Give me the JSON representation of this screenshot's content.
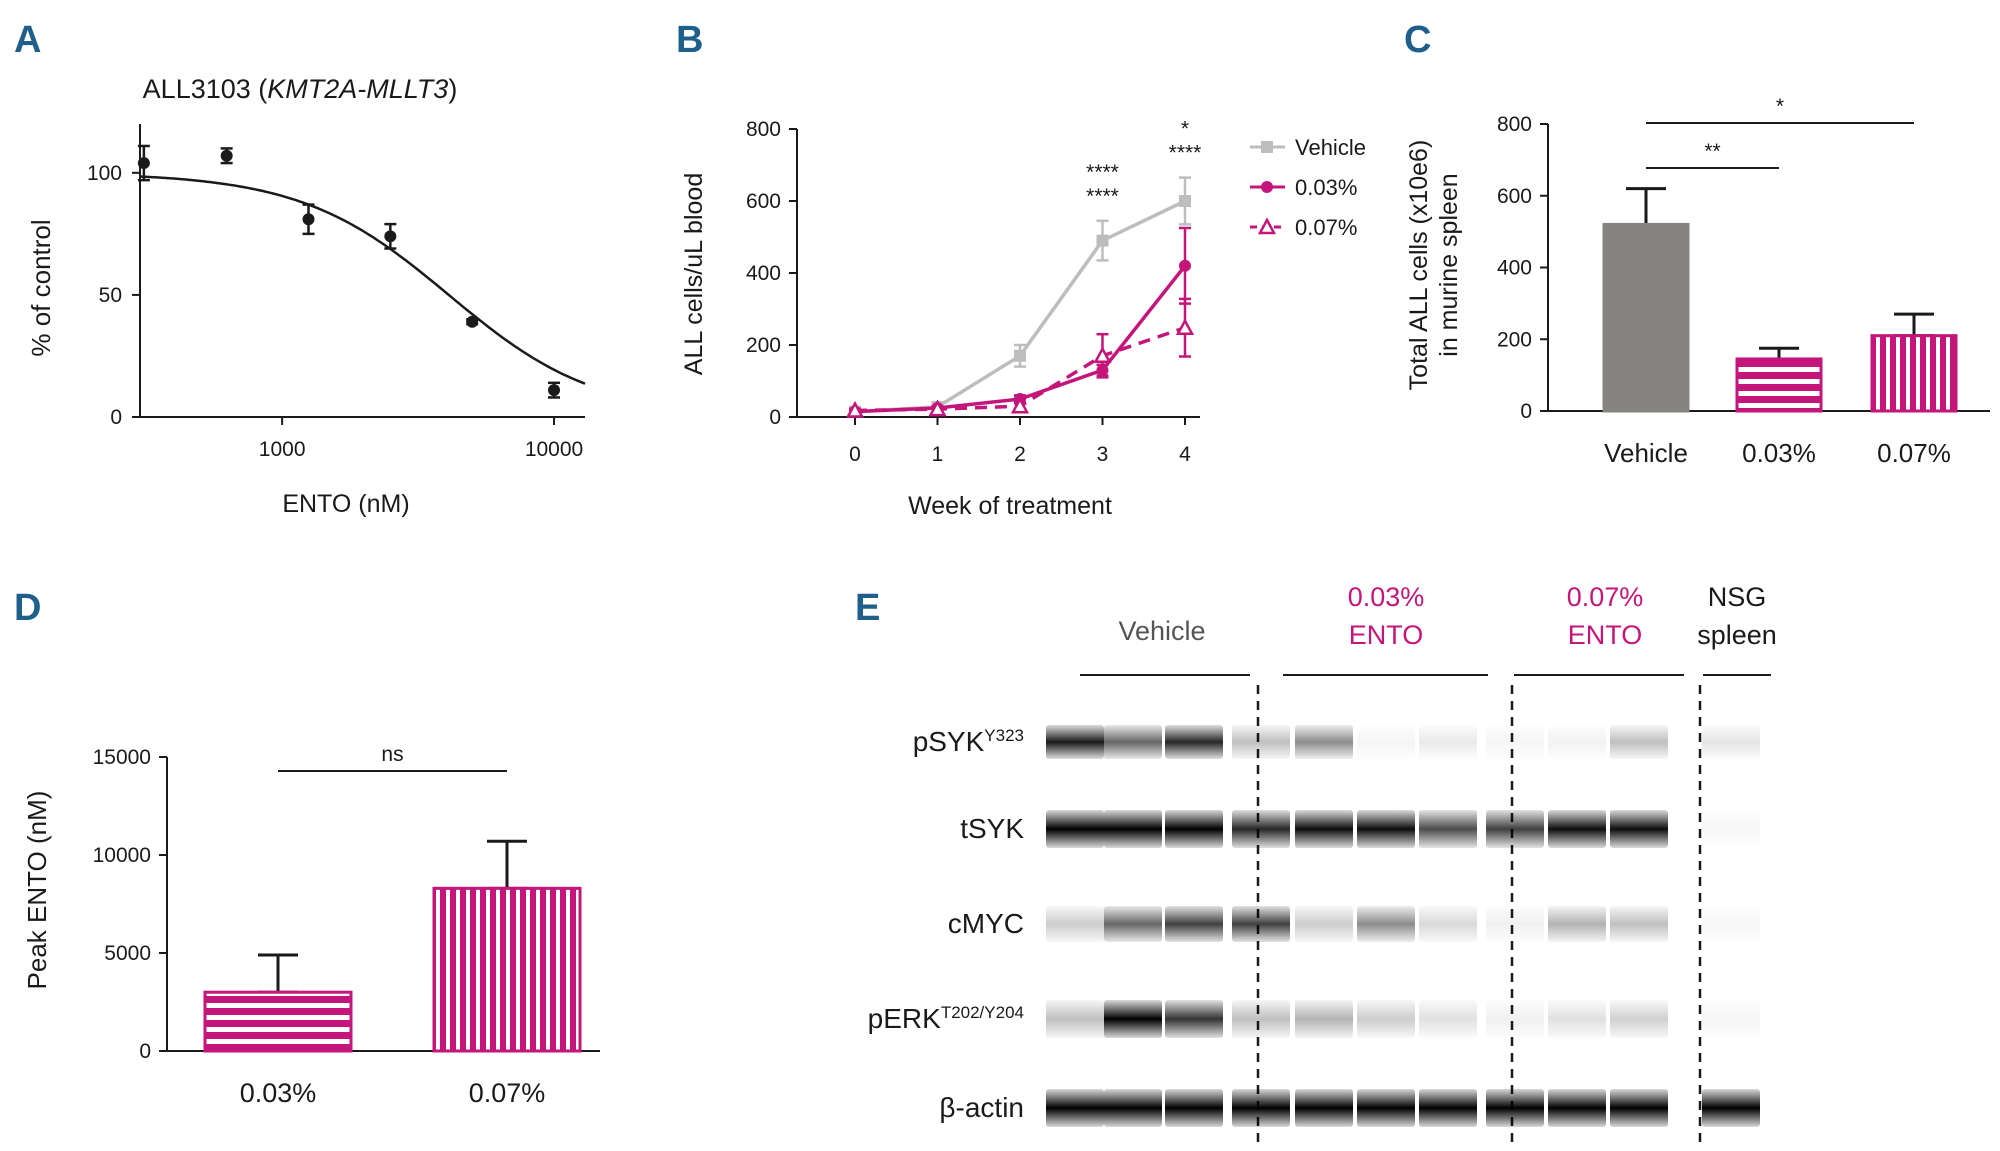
{
  "colors": {
    "black": "#1a1a1a",
    "grey": "#bdbdbd",
    "vehicle_bar": "#858480",
    "magenta": "#c4157a",
    "panel_letter": "#1f5f8b"
  },
  "panels": {
    "A": "A",
    "B": "B",
    "C": "C",
    "D": "D",
    "E": "E"
  },
  "chart_data": [
    {
      "panel": "A",
      "type": "scatter",
      "title_prefix": "ALL3103 (",
      "title_italic": "KMT2A-MLLT3",
      "title_suffix": ")",
      "xlabel": "ENTO (nM)",
      "ylabel": "% of control",
      "xscale": "log",
      "xlim": [
        300,
        13000
      ],
      "ylim": [
        0,
        120
      ],
      "xticks": [
        1000,
        10000
      ],
      "xtick_labels": [
        "1000",
        "10000"
      ],
      "yticks": [
        0,
        50,
        100
      ],
      "ytick_labels": [
        "0",
        "50",
        "100"
      ],
      "points": [
        {
          "x": 310,
          "y": 104,
          "err": 7
        },
        {
          "x": 625,
          "y": 107,
          "err": 3
        },
        {
          "x": 1250,
          "y": 81,
          "err": 6
        },
        {
          "x": 2500,
          "y": 74,
          "err": 5
        },
        {
          "x": 5000,
          "y": 39,
          "err": 1
        },
        {
          "x": 10000,
          "y": 11,
          "err": 3
        }
      ],
      "fit": {
        "top": 100,
        "bottom": 0,
        "ic50": 4100,
        "hill": 1.6
      }
    },
    {
      "panel": "B",
      "type": "line",
      "xlabel": "Week of treatment",
      "ylabel": "ALL cells/uL blood",
      "x": [
        0,
        1,
        2,
        3,
        4
      ],
      "xtick_labels": [
        "0",
        "1",
        "2",
        "3",
        "4"
      ],
      "ylim": [
        0,
        800
      ],
      "yticks": [
        0,
        200,
        400,
        600,
        800
      ],
      "ytick_labels": [
        "0",
        "200",
        "400",
        "600",
        "800"
      ],
      "series": [
        {
          "name": "Vehicle",
          "marker": "square",
          "dash": false,
          "color": "#bdbdbd",
          "values": [
            15,
            28,
            170,
            490,
            600
          ],
          "err": [
            5,
            5,
            30,
            55,
            65
          ]
        },
        {
          "name": "0.03%",
          "marker": "circle",
          "dash": false,
          "color": "#c4157a",
          "values": [
            15,
            25,
            50,
            130,
            420
          ],
          "err": [
            5,
            5,
            10,
            15,
            105
          ]
        },
        {
          "name": "0.07%",
          "marker": "triangle",
          "dash": true,
          "color": "#c4157a",
          "values": [
            18,
            22,
            30,
            170,
            248
          ],
          "err": [
            5,
            5,
            8,
            60,
            80
          ]
        }
      ],
      "annotations": [
        {
          "x": 3,
          "lines": [
            "****",
            "****"
          ]
        },
        {
          "x": 4,
          "lines": [
            "*",
            "****"
          ]
        }
      ]
    },
    {
      "panel": "C",
      "type": "bar",
      "ylabel_line1": "Total ALL cells (x10e6)",
      "ylabel_line2": "in murine spleen",
      "categories": [
        "Vehicle",
        "0.03%",
        "0.07%"
      ],
      "values": [
        520,
        145,
        210
      ],
      "err": [
        100,
        30,
        60
      ],
      "fills": [
        "solid",
        "hstripe",
        "vstripe"
      ],
      "ylim": [
        0,
        800
      ],
      "yticks": [
        0,
        200,
        400,
        600,
        800
      ],
      "ytick_labels": [
        "0",
        "200",
        "400",
        "600",
        "800"
      ],
      "significance": [
        {
          "from": 0,
          "to": 1,
          "label": "**"
        },
        {
          "from": 0,
          "to": 2,
          "label": "*"
        }
      ]
    },
    {
      "panel": "D",
      "type": "bar",
      "ylabel": "Peak ENTO (nM)",
      "categories": [
        "0.03%",
        "0.07%"
      ],
      "values": [
        3000,
        8300
      ],
      "err": [
        1900,
        2400
      ],
      "fills": [
        "hstripe",
        "vstripe"
      ],
      "ylim": [
        0,
        15000
      ],
      "yticks": [
        0,
        5000,
        10000,
        15000
      ],
      "ytick_labels": [
        "0",
        "5000",
        "10000",
        "15000"
      ],
      "significance": [
        {
          "from": 0,
          "to": 1,
          "label": "ns"
        }
      ]
    },
    {
      "panel": "E",
      "type": "blot",
      "groups": [
        {
          "line1": "Vehicle",
          "line2": "",
          "lanes": 3,
          "color": "#555555"
        },
        {
          "line1": "0.03%",
          "line2": "ENTO",
          "lanes": 4,
          "color": "#c4157a"
        },
        {
          "line1": "0.07%",
          "line2": "ENTO",
          "lanes": 3,
          "color": "#c4157a"
        },
        {
          "line1": "NSG",
          "line2": "spleen",
          "lanes": 1,
          "color": "#1a1a1a"
        }
      ],
      "rows": [
        {
          "label": "pSYK",
          "sup": "Y323",
          "intensity": [
            0.9,
            0.6,
            0.85,
            0.25,
            0.45,
            0.04,
            0.08,
            0.04,
            0.05,
            0.25,
            0.1
          ]
        },
        {
          "label": "tSYK",
          "sup": "",
          "intensity": [
            1.0,
            1.0,
            1.0,
            0.85,
            0.95,
            0.95,
            0.7,
            0.75,
            0.95,
            0.95,
            0.03
          ]
        },
        {
          "label": "cMYC",
          "sup": "",
          "intensity": [
            0.2,
            0.6,
            0.75,
            0.75,
            0.2,
            0.45,
            0.15,
            0.06,
            0.3,
            0.25,
            0.02
          ]
        },
        {
          "label": "pERK",
          "sup": "T202/Y204",
          "intensity": [
            0.25,
            1.0,
            0.8,
            0.25,
            0.3,
            0.2,
            0.12,
            0.06,
            0.12,
            0.18,
            0.04
          ]
        },
        {
          "label": "β-actin",
          "sup": "",
          "intensity": [
            1.0,
            1.0,
            1.0,
            1.0,
            1.0,
            1.0,
            1.0,
            1.0,
            1.0,
            1.0,
            1.0
          ]
        }
      ]
    }
  ]
}
